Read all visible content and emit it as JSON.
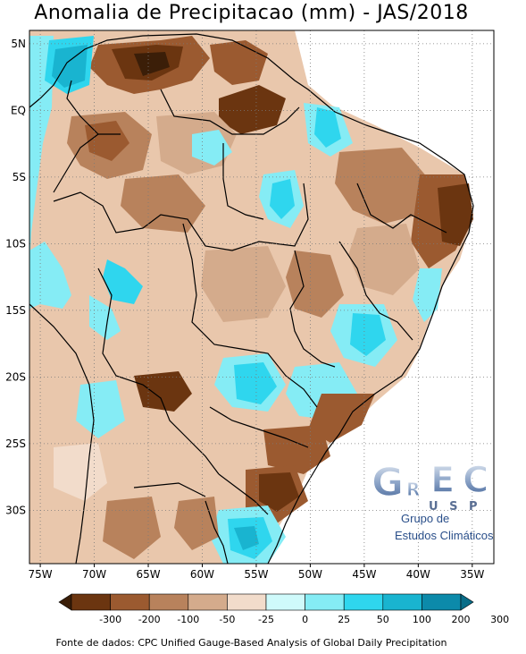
{
  "title": "Anomalia de Precipitacao (mm) - JAS/2018",
  "map": {
    "lat_labels": [
      "5N",
      "EQ",
      "5S",
      "10S",
      "15S",
      "20S",
      "25S",
      "30S"
    ],
    "lon_labels": [
      "75W",
      "70W",
      "65W",
      "60W",
      "55W",
      "50W",
      "45W",
      "40W",
      "35W"
    ],
    "lat_values": [
      5,
      0,
      -5,
      -10,
      -15,
      -20,
      -25,
      -30
    ],
    "lon_values": [
      -75,
      -70,
      -65,
      -60,
      -55,
      -50,
      -45,
      -40,
      -35
    ],
    "lon_range": [
      -76,
      -33
    ],
    "lat_range": [
      -34,
      6
    ],
    "grid": true
  },
  "colorbar": {
    "tick_labels": [
      "-300",
      "-200",
      "-100",
      "-50",
      "-25",
      "0",
      "25",
      "50",
      "100",
      "200",
      "300"
    ],
    "colors": [
      "#3b1e08",
      "#6b3510",
      "#9b5a30",
      "#b8825c",
      "#d4ab8c",
      "#f2dccb",
      "#cffafb",
      "#85ecf5",
      "#2fd6ee",
      "#19b4d0",
      "#0c8aaa",
      "#096d88"
    ]
  },
  "logo": {
    "letters": [
      "G",
      "R",
      "E",
      "C"
    ],
    "usp": "U S P",
    "line1": "Grupo de",
    "line2": "Estudos Climáticos"
  },
  "source": "Fonte de dados: CPC Unified Gauge-Based Analysis of Global Daily Precipitation"
}
